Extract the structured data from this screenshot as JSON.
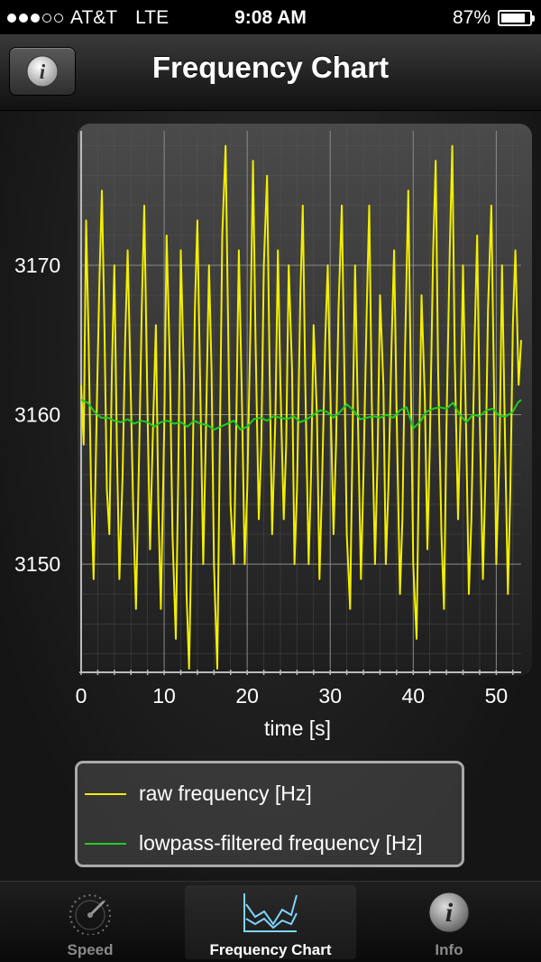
{
  "status_bar": {
    "signal_full": 3,
    "signal_total": 5,
    "carrier": "AT&T",
    "network": "LTE",
    "time": "9:08 AM",
    "battery": "87%",
    "battery_level": 0.87
  },
  "nav": {
    "title": "Frequency Chart",
    "info_glyph": "i"
  },
  "tabs": [
    {
      "label": "Speed",
      "icon": "speedometer-icon",
      "active": false
    },
    {
      "label": "Frequency Chart",
      "icon": "chart-icon",
      "active": true
    },
    {
      "label": "Info",
      "icon": "info-icon",
      "active": false
    }
  ],
  "colors": {
    "raw": "#f2ee00",
    "filtered": "#22cc22"
  },
  "chart_data": {
    "type": "line",
    "xlabel": "time [s]",
    "ylabel": "",
    "xlim": [
      0,
      53
    ],
    "ylim": [
      3143,
      3179
    ],
    "x_ticks": [
      0,
      10,
      20,
      30,
      40,
      50
    ],
    "y_ticks": [
      3150,
      3160,
      3170
    ],
    "grid": true,
    "legend_position": "bottom",
    "series": [
      {
        "name": "raw frequency [Hz]",
        "color": "#f2ee00",
        "points": [
          [
            0.0,
            3162
          ],
          [
            0.3,
            3158
          ],
          [
            0.6,
            3173
          ],
          [
            0.9,
            3165
          ],
          [
            1.2,
            3155
          ],
          [
            1.5,
            3149
          ],
          [
            1.9,
            3161
          ],
          [
            2.2,
            3169
          ],
          [
            2.5,
            3175
          ],
          [
            2.8,
            3166
          ],
          [
            3.1,
            3155
          ],
          [
            3.4,
            3152
          ],
          [
            3.7,
            3163
          ],
          [
            4.0,
            3170
          ],
          [
            4.3,
            3158
          ],
          [
            4.6,
            3149
          ],
          [
            5.0,
            3156
          ],
          [
            5.3,
            3165
          ],
          [
            5.6,
            3171
          ],
          [
            6.0,
            3161
          ],
          [
            6.3,
            3153
          ],
          [
            6.6,
            3147
          ],
          [
            7.0,
            3158
          ],
          [
            7.3,
            3167
          ],
          [
            7.6,
            3174
          ],
          [
            8.0,
            3160
          ],
          [
            8.3,
            3151
          ],
          [
            8.6,
            3158
          ],
          [
            9.0,
            3166
          ],
          [
            9.3,
            3154
          ],
          [
            9.6,
            3147
          ],
          [
            10.0,
            3159
          ],
          [
            10.3,
            3172
          ],
          [
            10.7,
            3163
          ],
          [
            11.0,
            3152
          ],
          [
            11.4,
            3145
          ],
          [
            11.7,
            3156
          ],
          [
            12.0,
            3171
          ],
          [
            12.4,
            3162
          ],
          [
            12.7,
            3148
          ],
          [
            13.0,
            3143
          ],
          [
            13.4,
            3155
          ],
          [
            13.7,
            3167
          ],
          [
            14.0,
            3173
          ],
          [
            14.4,
            3160
          ],
          [
            14.7,
            3150
          ],
          [
            15.0,
            3158
          ],
          [
            15.4,
            3170
          ],
          [
            15.7,
            3163
          ],
          [
            16.0,
            3150
          ],
          [
            16.4,
            3143
          ],
          [
            16.7,
            3158
          ],
          [
            17.0,
            3172
          ],
          [
            17.4,
            3178
          ],
          [
            17.7,
            3166
          ],
          [
            18.0,
            3154
          ],
          [
            18.4,
            3150
          ],
          [
            18.7,
            3160
          ],
          [
            19.0,
            3171
          ],
          [
            19.4,
            3160
          ],
          [
            19.7,
            3150
          ],
          [
            20.0,
            3155
          ],
          [
            20.4,
            3166
          ],
          [
            20.7,
            3177
          ],
          [
            21.0,
            3165
          ],
          [
            21.4,
            3153
          ],
          [
            21.7,
            3158
          ],
          [
            22.0,
            3170
          ],
          [
            22.4,
            3176
          ],
          [
            22.7,
            3163
          ],
          [
            23.0,
            3152
          ],
          [
            23.4,
            3160
          ],
          [
            23.7,
            3171
          ],
          [
            24.0,
            3162
          ],
          [
            24.4,
            3153
          ],
          [
            24.7,
            3158
          ],
          [
            25.0,
            3170
          ],
          [
            25.4,
            3163
          ],
          [
            25.7,
            3150
          ],
          [
            26.0,
            3155
          ],
          [
            26.4,
            3168
          ],
          [
            26.7,
            3174
          ],
          [
            27.0,
            3162
          ],
          [
            27.4,
            3150
          ],
          [
            27.7,
            3156
          ],
          [
            28.0,
            3166
          ],
          [
            28.4,
            3160
          ],
          [
            28.7,
            3149
          ],
          [
            29.0,
            3155
          ],
          [
            29.4,
            3165
          ],
          [
            29.7,
            3170
          ],
          [
            30.0,
            3162
          ],
          [
            30.4,
            3152
          ],
          [
            30.7,
            3158
          ],
          [
            31.0,
            3167
          ],
          [
            31.4,
            3174
          ],
          [
            31.7,
            3163
          ],
          [
            32.0,
            3152
          ],
          [
            32.4,
            3147
          ],
          [
            32.7,
            3159
          ],
          [
            33.0,
            3170
          ],
          [
            33.4,
            3158
          ],
          [
            33.7,
            3149
          ],
          [
            34.0,
            3156
          ],
          [
            34.4,
            3167
          ],
          [
            34.7,
            3174
          ],
          [
            35.0,
            3161
          ],
          [
            35.4,
            3150
          ],
          [
            35.7,
            3157
          ],
          [
            36.0,
            3168
          ],
          [
            36.4,
            3162
          ],
          [
            36.7,
            3150
          ],
          [
            37.0,
            3155
          ],
          [
            37.4,
            3165
          ],
          [
            37.7,
            3171
          ],
          [
            38.0,
            3160
          ],
          [
            38.4,
            3148
          ],
          [
            38.7,
            3153
          ],
          [
            39.0,
            3164
          ],
          [
            39.4,
            3175
          ],
          [
            39.7,
            3163
          ],
          [
            40.0,
            3150
          ],
          [
            40.4,
            3145
          ],
          [
            40.7,
            3157
          ],
          [
            41.0,
            3168
          ],
          [
            41.4,
            3161
          ],
          [
            41.7,
            3151
          ],
          [
            42.0,
            3158
          ],
          [
            42.4,
            3171
          ],
          [
            42.7,
            3177
          ],
          [
            43.0,
            3163
          ],
          [
            43.4,
            3152
          ],
          [
            43.7,
            3147
          ],
          [
            44.0,
            3159
          ],
          [
            44.4,
            3171
          ],
          [
            44.7,
            3178
          ],
          [
            45.0,
            3164
          ],
          [
            45.4,
            3153
          ],
          [
            45.7,
            3160
          ],
          [
            46.0,
            3170
          ],
          [
            46.4,
            3158
          ],
          [
            46.7,
            3148
          ],
          [
            47.0,
            3153
          ],
          [
            47.4,
            3165
          ],
          [
            47.7,
            3172
          ],
          [
            48.0,
            3160
          ],
          [
            48.4,
            3149
          ],
          [
            48.7,
            3156
          ],
          [
            49.0,
            3167
          ],
          [
            49.4,
            3174
          ],
          [
            49.7,
            3163
          ],
          [
            50.0,
            3150
          ],
          [
            50.4,
            3158
          ],
          [
            50.7,
            3170
          ],
          [
            51.0,
            3160
          ],
          [
            51.4,
            3148
          ],
          [
            51.7,
            3155
          ],
          [
            52.0,
            3166
          ],
          [
            52.3,
            3171
          ],
          [
            52.7,
            3162
          ],
          [
            53.0,
            3165
          ]
        ]
      },
      {
        "name": "lowpass-filtered frequency [Hz]",
        "color": "#22cc22",
        "points": [
          [
            0.0,
            3161
          ],
          [
            0.8,
            3160.8
          ],
          [
            1.6,
            3160.2
          ],
          [
            2.4,
            3159.8
          ],
          [
            3.2,
            3159.8
          ],
          [
            4.0,
            3159.6
          ],
          [
            4.8,
            3159.5
          ],
          [
            5.6,
            3159.7
          ],
          [
            6.4,
            3159.4
          ],
          [
            7.2,
            3159.6
          ],
          [
            8.0,
            3159.5
          ],
          [
            8.8,
            3159.2
          ],
          [
            9.6,
            3159.5
          ],
          [
            10.4,
            3159.6
          ],
          [
            11.2,
            3159.4
          ],
          [
            12.0,
            3159.5
          ],
          [
            12.8,
            3159.2
          ],
          [
            13.6,
            3159.6
          ],
          [
            14.4,
            3159.4
          ],
          [
            15.2,
            3159.3
          ],
          [
            16.0,
            3159.0
          ],
          [
            16.8,
            3159.2
          ],
          [
            17.6,
            3159.4
          ],
          [
            18.4,
            3159.6
          ],
          [
            19.2,
            3159.0
          ],
          [
            20.0,
            3159.2
          ],
          [
            20.8,
            3159.7
          ],
          [
            21.6,
            3159.8
          ],
          [
            22.4,
            3159.6
          ],
          [
            23.2,
            3159.9
          ],
          [
            24.0,
            3159.8
          ],
          [
            24.8,
            3159.7
          ],
          [
            25.6,
            3159.9
          ],
          [
            26.4,
            3159.5
          ],
          [
            27.2,
            3159.7
          ],
          [
            28.0,
            3160.0
          ],
          [
            28.8,
            3160.3
          ],
          [
            29.6,
            3160.2
          ],
          [
            30.4,
            3159.8
          ],
          [
            31.2,
            3160.2
          ],
          [
            32.0,
            3160.7
          ],
          [
            32.8,
            3160.3
          ],
          [
            33.6,
            3159.7
          ],
          [
            34.4,
            3159.8
          ],
          [
            35.2,
            3159.9
          ],
          [
            36.0,
            3159.8
          ],
          [
            36.8,
            3160.0
          ],
          [
            37.6,
            3159.8
          ],
          [
            38.4,
            3160.3
          ],
          [
            39.2,
            3160.5
          ],
          [
            40.0,
            3159.1
          ],
          [
            40.8,
            3159.5
          ],
          [
            41.6,
            3160.2
          ],
          [
            42.4,
            3160.4
          ],
          [
            43.2,
            3160.5
          ],
          [
            44.0,
            3160.4
          ],
          [
            44.8,
            3160.8
          ],
          [
            45.6,
            3160.0
          ],
          [
            46.4,
            3159.5
          ],
          [
            47.2,
            3160.0
          ],
          [
            48.0,
            3159.9
          ],
          [
            48.8,
            3160.3
          ],
          [
            49.6,
            3160.4
          ],
          [
            50.4,
            3159.9
          ],
          [
            51.2,
            3159.9
          ],
          [
            52.0,
            3160.2
          ],
          [
            52.6,
            3160.8
          ],
          [
            53.0,
            3161.0
          ]
        ]
      }
    ]
  }
}
